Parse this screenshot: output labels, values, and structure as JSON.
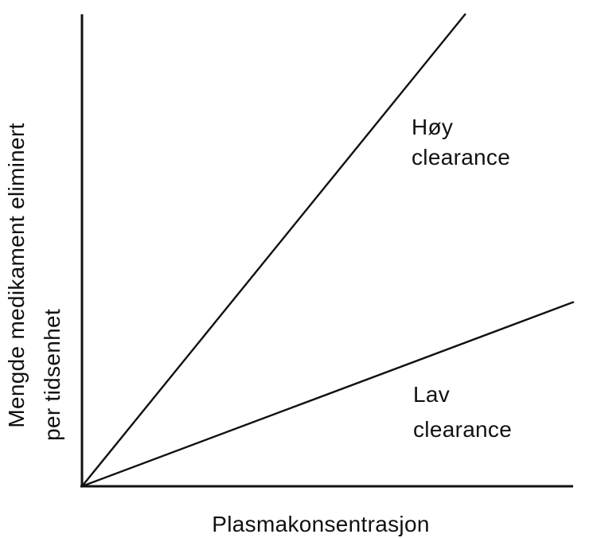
{
  "chart_data": {
    "type": "line",
    "title": "",
    "xlabel": "Plasmakonsentrasjon",
    "ylabel_lines": [
      "Mengde medikament eliminert",
      "per tidsenhet"
    ],
    "xlim": [
      0,
      10
    ],
    "ylim": [
      0,
      10
    ],
    "grid": false,
    "legend": "none",
    "series": [
      {
        "label_lines": [
          "Høy",
          "clearance"
        ],
        "x": [
          0,
          7.8
        ],
        "y": [
          0,
          10
        ],
        "color": "#111111"
      },
      {
        "label_lines": [
          "Lav",
          "clearance"
        ],
        "x": [
          0,
          10
        ],
        "y": [
          0,
          3.9
        ],
        "color": "#111111"
      }
    ]
  }
}
